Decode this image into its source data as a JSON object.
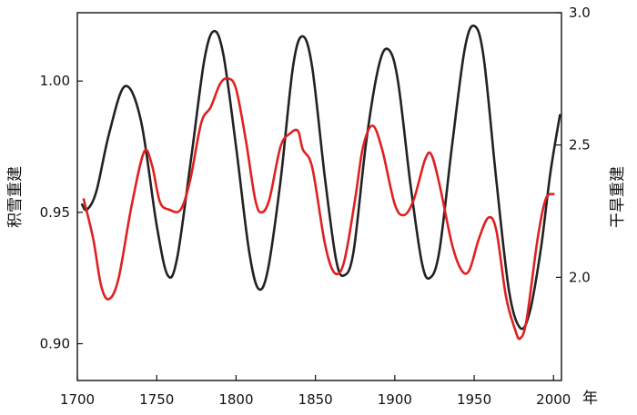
{
  "chart_data": {
    "type": "line",
    "x_unit_label": "年",
    "xlim": [
      1700,
      2005
    ],
    "x_ticks": [
      1700,
      1750,
      1800,
      1850,
      1900,
      1950,
      2000
    ],
    "y_left": {
      "label": "积雪重建",
      "lim": [
        0.886,
        1.026
      ],
      "ticks": [
        0.9,
        0.95,
        1.0
      ],
      "tick_labels": [
        "0.90",
        "0.95",
        "1.00"
      ]
    },
    "y_right": {
      "label": "干旱重建",
      "lim": [
        1.61,
        3.0
      ],
      "ticks": [
        2.0,
        2.5,
        3.0
      ],
      "tick_labels": [
        "2.0",
        "2.5",
        "3.0"
      ]
    },
    "series": [
      {
        "axis": "left",
        "color": "#222222",
        "points": [
          [
            1703,
            0.953
          ],
          [
            1706,
            0.951
          ],
          [
            1712,
            0.958
          ],
          [
            1720,
            0.98
          ],
          [
            1730,
            0.998
          ],
          [
            1740,
            0.985
          ],
          [
            1750,
            0.945
          ],
          [
            1757,
            0.926
          ],
          [
            1763,
            0.933
          ],
          [
            1772,
            0.972
          ],
          [
            1780,
            1.008
          ],
          [
            1786,
            1.019
          ],
          [
            1792,
            1.01
          ],
          [
            1800,
            0.975
          ],
          [
            1808,
            0.936
          ],
          [
            1814,
            0.921
          ],
          [
            1820,
            0.928
          ],
          [
            1828,
            0.962
          ],
          [
            1836,
            1.006
          ],
          [
            1842,
            1.017
          ],
          [
            1848,
            1.005
          ],
          [
            1856,
            0.963
          ],
          [
            1863,
            0.932
          ],
          [
            1868,
            0.926
          ],
          [
            1874,
            0.935
          ],
          [
            1882,
            0.977
          ],
          [
            1890,
            1.006
          ],
          [
            1896,
            1.012
          ],
          [
            1902,
            1.0
          ],
          [
            1910,
            0.96
          ],
          [
            1917,
            0.931
          ],
          [
            1922,
            0.925
          ],
          [
            1928,
            0.935
          ],
          [
            1936,
            0.975
          ],
          [
            1944,
            1.012
          ],
          [
            1950,
            1.021
          ],
          [
            1956,
            1.009
          ],
          [
            1964,
            0.962
          ],
          [
            1972,
            0.92
          ],
          [
            1979,
            0.906
          ],
          [
            1985,
            0.912
          ],
          [
            1992,
            0.936
          ],
          [
            1998,
            0.965
          ],
          [
            2004,
            0.987
          ]
        ]
      },
      {
        "axis": "left",
        "color": "#e02020",
        "points": [
          [
            1704,
            0.955
          ],
          [
            1710,
            0.94
          ],
          [
            1715,
            0.922
          ],
          [
            1720,
            0.917
          ],
          [
            1726,
            0.925
          ],
          [
            1734,
            0.952
          ],
          [
            1742,
            0.973
          ],
          [
            1747,
            0.968
          ],
          [
            1752,
            0.954
          ],
          [
            1758,
            0.951
          ],
          [
            1765,
            0.951
          ],
          [
            1771,
            0.962
          ],
          [
            1778,
            0.984
          ],
          [
            1784,
            0.99
          ],
          [
            1790,
            0.999
          ],
          [
            1795,
            1.001
          ],
          [
            1800,
            0.997
          ],
          [
            1806,
            0.978
          ],
          [
            1812,
            0.955
          ],
          [
            1816,
            0.95
          ],
          [
            1821,
            0.955
          ],
          [
            1828,
            0.975
          ],
          [
            1834,
            0.98
          ],
          [
            1839,
            0.981
          ],
          [
            1842,
            0.974
          ],
          [
            1848,
            0.967
          ],
          [
            1856,
            0.938
          ],
          [
            1862,
            0.927
          ],
          [
            1868,
            0.931
          ],
          [
            1875,
            0.955
          ],
          [
            1880,
            0.975
          ],
          [
            1886,
            0.983
          ],
          [
            1892,
            0.974
          ],
          [
            1900,
            0.953
          ],
          [
            1906,
            0.949
          ],
          [
            1912,
            0.955
          ],
          [
            1919,
            0.97
          ],
          [
            1923,
            0.972
          ],
          [
            1928,
            0.961
          ],
          [
            1936,
            0.938
          ],
          [
            1942,
            0.928
          ],
          [
            1947,
            0.928
          ],
          [
            1953,
            0.94
          ],
          [
            1959,
            0.948
          ],
          [
            1964,
            0.943
          ],
          [
            1970,
            0.918
          ],
          [
            1976,
            0.905
          ],
          [
            1979,
            0.902
          ],
          [
            1983,
            0.909
          ],
          [
            1990,
            0.94
          ],
          [
            1995,
            0.955
          ],
          [
            2000,
            0.957
          ]
        ]
      }
    ]
  }
}
